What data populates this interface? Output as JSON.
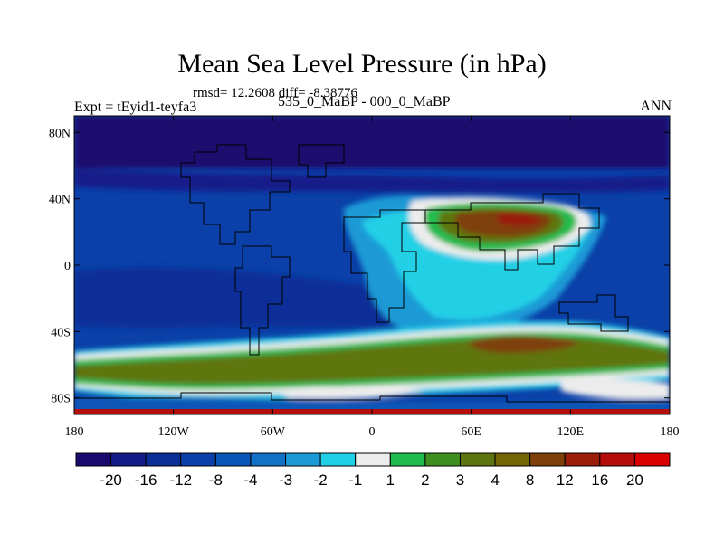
{
  "header": {
    "title": "Mean Sea Level Pressure (in hPa)",
    "stats": "rmsd= 12.2608 diff= -8.38776",
    "experiment": "Expt = tEyid1-teyfa3",
    "difference": "535_0_MaBP - 000_0_MaBP",
    "season": "ANN"
  },
  "chart_data": {
    "type": "heatmap",
    "title": "Mean Sea Level Pressure (in hPa)",
    "subtitle": "535_0_MaBP - 000_0_MaBP",
    "x_ticks": [
      "180",
      "120W",
      "60W",
      "0",
      "60E",
      "120E",
      "180"
    ],
    "y_ticks": [
      "80N",
      "40N",
      "0",
      "40S",
      "80S"
    ],
    "xlim": [
      -180,
      180
    ],
    "ylim": [
      -90,
      90
    ],
    "colorbar": {
      "labels": [
        "-20",
        "-16",
        "-12",
        "-8",
        "-4",
        "-3",
        "-2",
        "-1",
        "1",
        "2",
        "3",
        "4",
        "8",
        "12",
        "16",
        "20"
      ],
      "colors": [
        "#1a0a6e",
        "#141c8a",
        "#0c2e98",
        "#0a40a8",
        "#0a56b8",
        "#1270c6",
        "#1c9ad6",
        "#20d0e6",
        "#ececec",
        "#20bb4e",
        "#3f8e22",
        "#5e7410",
        "#736406",
        "#7e400a",
        "#9a1e0a",
        "#b50e0a",
        "#d80000"
      ]
    }
  }
}
